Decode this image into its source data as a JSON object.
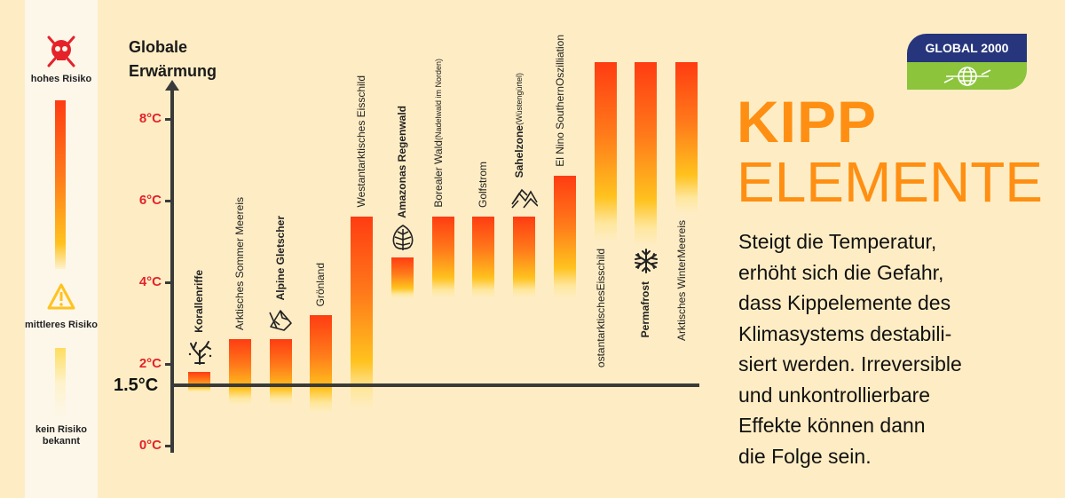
{
  "legend": {
    "high": "hohes Risiko",
    "medium": "mittleres Risiko",
    "none": "kein Risiko bekannt",
    "high_icon": "skull-crossbones-icon",
    "medium_icon": "warning-triangle-icon"
  },
  "colors": {
    "background": "#feedc4",
    "red": "#ff3c12",
    "orange": "#ff8f12",
    "yellow": "#ffd21e",
    "tick": "#e5222a",
    "logo_blue": "#26357c",
    "logo_green": "#8cc43c"
  },
  "logo": {
    "text": "GLOBAL 2000",
    "icon": "globe-icon"
  },
  "title": {
    "line1": "KIPP",
    "line2": "ELEMENTE"
  },
  "body_lines": [
    "Steigt die Temperatur,",
    "erhöht sich die Gefahr,",
    "dass Kippelemente des",
    "Klimasystems destabili-",
    "siert werden. Irreversible",
    "und unkontrollierbare",
    "Effekte können dann",
    "die Folge sein."
  ],
  "chart_data": {
    "type": "bar",
    "subtype": "floating-range",
    "ylabel": "Globale Erwärmung",
    "ylim": [
      0,
      8
    ],
    "yticks": [
      "0°C",
      "2°C",
      "4°C",
      "6°C",
      "8°C"
    ],
    "reference_line": {
      "value": 1.5,
      "label": "1.5°C"
    },
    "grid": false,
    "items": [
      {
        "name": "Korallenriffe",
        "bold": true,
        "icon": "coral-icon",
        "low": 1.3,
        "high": 1.8
      },
      {
        "name": "Arktisches Sommer Meereis",
        "low": 1.0,
        "high": 2.6
      },
      {
        "name": "Alpine Gletscher",
        "bold": true,
        "icon": "glacier-icon",
        "low": 1.0,
        "high": 2.6
      },
      {
        "name": "Grönland",
        "low": 0.8,
        "high": 3.2
      },
      {
        "name": "Westantarktisches Eisschild",
        "low": 0.9,
        "high": 5.6
      },
      {
        "name": "Amazonas Regenwald",
        "bold": true,
        "icon": "leaf-icon",
        "low": 3.6,
        "high": 4.6
      },
      {
        "name": "Borealer Wald",
        "sub": "(Nadelwald im Norden)",
        "low": 3.6,
        "high": 5.6
      },
      {
        "name": "Golfstrom",
        "low": 3.6,
        "high": 5.6
      },
      {
        "name": "Sahelzone",
        "bold": true,
        "sub": "(Wüstengürtel)",
        "icon": "dunes-icon",
        "low": 3.6,
        "high": 5.6
      },
      {
        "name": "El Nino Southern",
        "sub2": "Oszilliation",
        "low": 3.6,
        "high": 6.6
      },
      {
        "name": "ostantarktisches",
        "sub2": "Eisschild",
        "low": 5.0,
        "high": 9.4
      },
      {
        "name": "Permafrost",
        "bold": true,
        "icon": "snowflake-icon",
        "low": 4.9,
        "high": 9.4
      },
      {
        "name": "Arktisches Winter",
        "sub2": "Meereis",
        "low": 5.7,
        "high": 9.4
      }
    ]
  }
}
